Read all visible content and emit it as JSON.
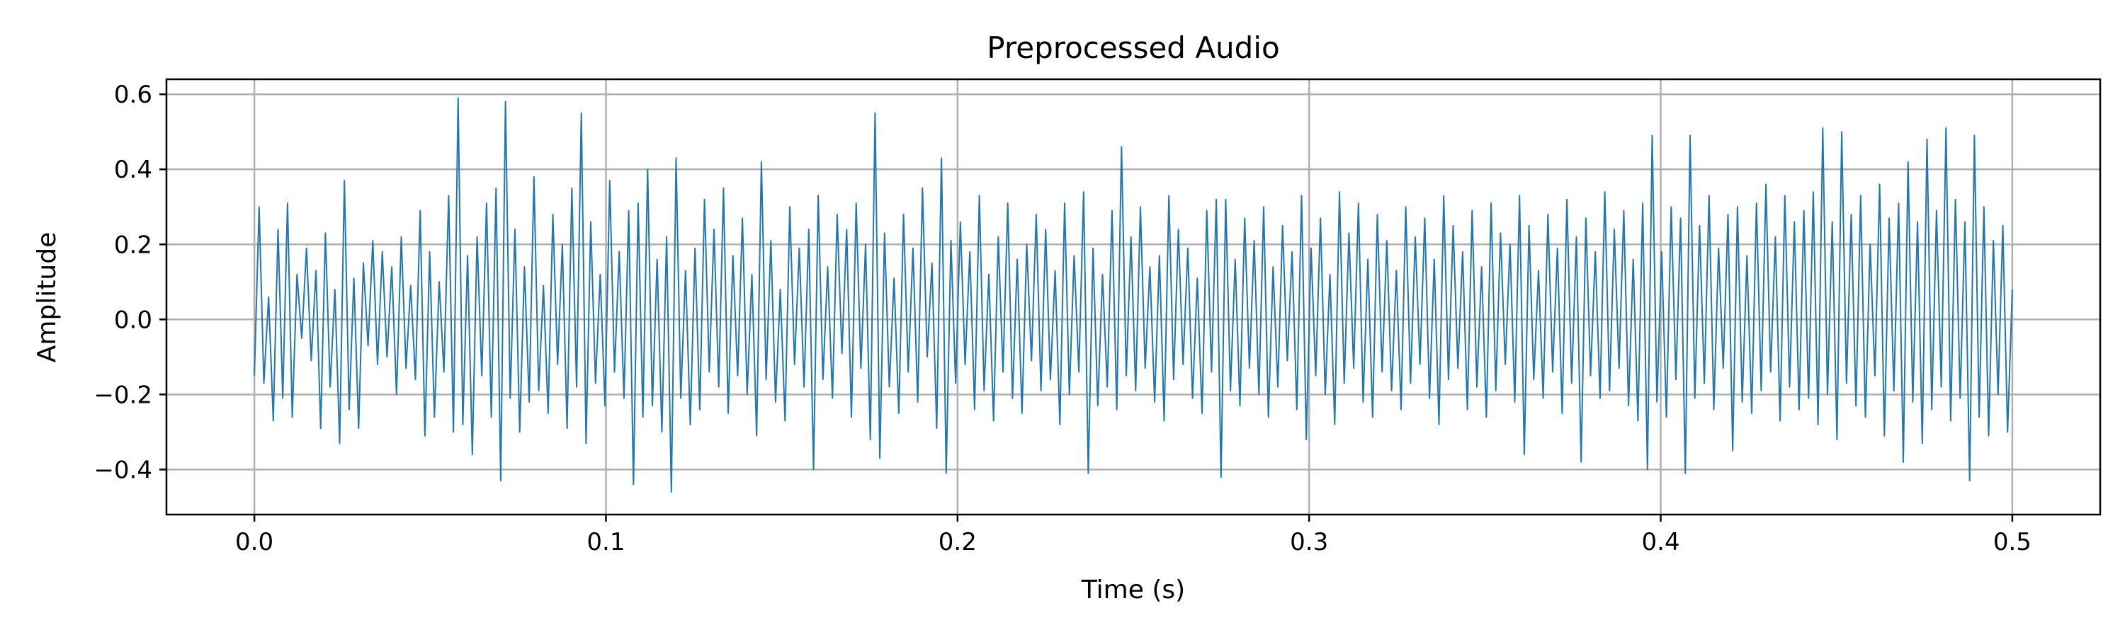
{
  "chart_data": {
    "type": "line",
    "title": "Preprocessed Audio",
    "xlabel": "Time (s)",
    "ylabel": "Amplitude",
    "xlim": [
      -0.025,
      0.525
    ],
    "ylim": [
      -0.52,
      0.64
    ],
    "xticks": [
      0.0,
      0.1,
      0.2,
      0.3,
      0.4,
      0.5
    ],
    "xtick_labels": [
      "0.0",
      "0.1",
      "0.2",
      "0.3",
      "0.4",
      "0.5"
    ],
    "yticks": [
      -0.4,
      -0.2,
      0.0,
      0.2,
      0.4,
      0.6
    ],
    "ytick_labels": [
      "−0.4",
      "−0.2",
      "0.0",
      "0.2",
      "0.4",
      "0.6"
    ],
    "grid": true,
    "line_color": "#1f77b4",
    "series": [
      {
        "x_start": 0.0,
        "x_end": 0.5,
        "values": [
          -0.15,
          0.3,
          -0.17,
          0.06,
          -0.27,
          0.24,
          -0.21,
          0.31,
          -0.26,
          0.12,
          -0.05,
          0.19,
          -0.11,
          0.13,
          -0.29,
          0.23,
          -0.18,
          0.08,
          -0.33,
          0.37,
          -0.24,
          0.11,
          -0.29,
          0.15,
          -0.07,
          0.21,
          -0.12,
          0.18,
          -0.1,
          0.14,
          -0.2,
          0.22,
          -0.13,
          0.09,
          -0.16,
          0.29,
          -0.31,
          0.18,
          -0.26,
          0.1,
          -0.14,
          0.33,
          -0.3,
          0.59,
          -0.28,
          0.17,
          -0.36,
          0.22,
          -0.15,
          0.31,
          -0.26,
          0.35,
          -0.43,
          0.58,
          -0.21,
          0.24,
          -0.3,
          0.14,
          -0.22,
          0.38,
          -0.19,
          0.09,
          -0.25,
          0.28,
          -0.12,
          0.2,
          -0.29,
          0.35,
          -0.18,
          0.55,
          -0.33,
          0.26,
          -0.17,
          0.12,
          -0.23,
          0.37,
          -0.14,
          0.18,
          -0.21,
          0.29,
          -0.44,
          0.31,
          -0.26,
          0.4,
          -0.23,
          0.16,
          -0.3,
          0.22,
          -0.46,
          0.43,
          -0.21,
          0.13,
          -0.28,
          0.19,
          -0.24,
          0.32,
          -0.14,
          0.24,
          -0.18,
          0.35,
          -0.25,
          0.17,
          -0.15,
          0.27,
          -0.2,
          0.12,
          -0.31,
          0.42,
          -0.16,
          0.21,
          -0.22,
          0.08,
          -0.27,
          0.3,
          -0.12,
          0.19,
          -0.18,
          0.24,
          -0.4,
          0.33,
          -0.16,
          0.14,
          -0.21,
          0.28,
          -0.09,
          0.24,
          -0.26,
          0.31,
          -0.13,
          0.2,
          -0.32,
          0.55,
          -0.37,
          0.23,
          -0.18,
          0.11,
          -0.25,
          0.28,
          -0.14,
          0.19,
          -0.22,
          0.35,
          -0.1,
          0.15,
          -0.29,
          0.43,
          -0.41,
          0.21,
          -0.17,
          0.26,
          -0.12,
          0.18,
          -0.24,
          0.33,
          -0.19,
          0.12,
          -0.27,
          0.22,
          -0.14,
          0.31,
          -0.21,
          0.16,
          -0.25,
          0.2,
          -0.11,
          0.28,
          -0.19,
          0.24,
          -0.16,
          0.13,
          -0.28,
          0.31,
          -0.2,
          0.17,
          -0.14,
          0.34,
          -0.41,
          0.19,
          -0.23,
          0.12,
          -0.18,
          0.29,
          -0.24,
          0.46,
          -0.15,
          0.22,
          -0.19,
          0.3,
          -0.13,
          0.14,
          -0.22,
          0.17,
          -0.27,
          0.33,
          -0.16,
          0.24,
          -0.12,
          0.19,
          -0.21,
          0.11,
          -0.25,
          0.29,
          -0.14,
          0.32,
          -0.42,
          0.32,
          -0.19,
          0.16,
          -0.23,
          0.27,
          -0.13,
          0.21,
          -0.2,
          0.3,
          -0.26,
          0.14,
          -0.18,
          0.25,
          -0.11,
          0.18,
          -0.24,
          0.33,
          -0.32,
          0.19,
          -0.15,
          0.27,
          -0.2,
          0.12,
          -0.28,
          0.34,
          -0.17,
          0.23,
          -0.13,
          0.31,
          -0.22,
          0.16,
          -0.26,
          0.28,
          -0.14,
          0.21,
          -0.19,
          0.13,
          -0.24,
          0.3,
          -0.17,
          0.22,
          -0.12,
          0.27,
          -0.21,
          0.16,
          -0.28,
          0.33,
          -0.16,
          0.25,
          -0.13,
          0.18,
          -0.24,
          0.29,
          -0.18,
          0.14,
          -0.26,
          0.31,
          -0.19,
          0.23,
          -0.12,
          0.2,
          -0.22,
          0.33,
          -0.36,
          0.25,
          -0.16,
          0.13,
          -0.21,
          0.28,
          -0.14,
          0.19,
          -0.25,
          0.32,
          -0.17,
          0.22,
          -0.38,
          0.27,
          -0.15,
          0.18,
          -0.21,
          0.34,
          -0.19,
          0.24,
          -0.13,
          0.29,
          -0.23,
          0.16,
          -0.27,
          0.31,
          -0.4,
          0.49,
          -0.22,
          0.18,
          -0.26,
          0.3,
          -0.16,
          0.27,
          -0.41,
          0.49,
          -0.21,
          0.25,
          -0.17,
          0.33,
          -0.24,
          0.19,
          -0.13,
          0.28,
          -0.35,
          0.3,
          -0.22,
          0.17,
          -0.25,
          0.31,
          -0.19,
          0.36,
          -0.14,
          0.22,
          -0.27,
          0.33,
          -0.18,
          0.26,
          -0.24,
          0.29,
          -0.21,
          0.34,
          -0.28,
          0.51,
          -0.2,
          0.26,
          -0.32,
          0.5,
          -0.17,
          0.28,
          -0.23,
          0.33,
          -0.26,
          0.2,
          -0.15,
          0.36,
          -0.31,
          0.27,
          -0.19,
          0.31,
          -0.38,
          0.42,
          -0.22,
          0.26,
          -0.33,
          0.48,
          -0.24,
          0.29,
          -0.18,
          0.51,
          -0.27,
          0.32,
          -0.21,
          0.26,
          -0.43,
          0.49,
          -0.26,
          0.3,
          -0.31,
          0.21,
          -0.2,
          0.25,
          -0.3,
          0.08
        ]
      }
    ]
  }
}
